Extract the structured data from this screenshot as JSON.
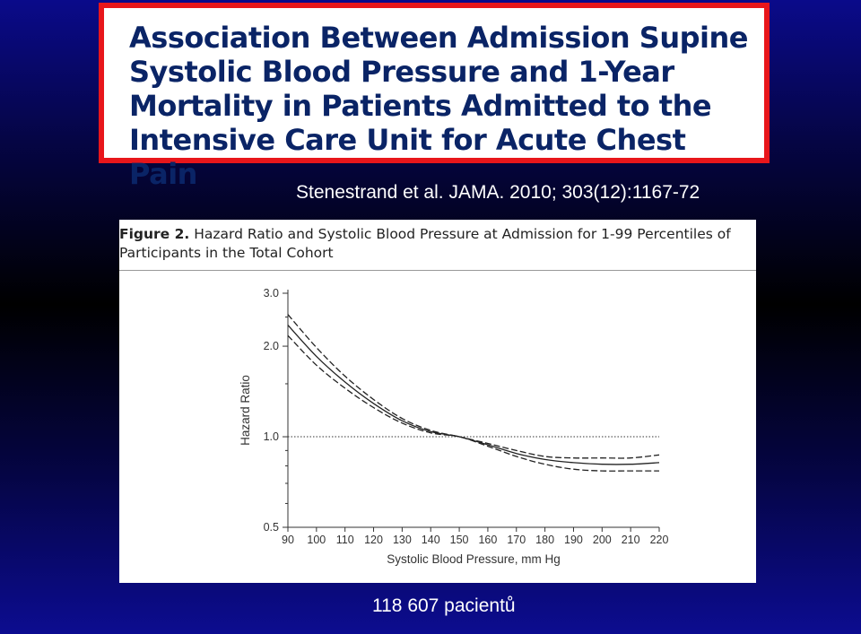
{
  "slide": {
    "title": "Association Between Admission Supine Systolic Blood Pressure and 1-Year Mortality in Patients Admitted to the Intensive Care Unit for Acute Chest Pain",
    "citation": "Stenestrand et al. JAMA. 2010; 303(12):1167-72",
    "footnote": "118 607 pacientů",
    "colors": {
      "title_border": "#e8161b",
      "title_text": "#0a2466",
      "background": "#000000"
    }
  },
  "figure": {
    "label": "Figure 2.",
    "caption": "Hazard Ratio and Systolic Blood Pressure at Admission for 1-99 Percentiles of Participants in the Total Cohort"
  },
  "chart_data": {
    "type": "line",
    "title": "",
    "xlabel": "Systolic Blood Pressure, mm Hg",
    "ylabel": "Hazard Ratio",
    "x_ticks": [
      90,
      100,
      110,
      120,
      130,
      140,
      150,
      160,
      170,
      180,
      190,
      200,
      210,
      220
    ],
    "y_tick_labels": [
      "3.0",
      "2.0",
      "1.0",
      "0.5"
    ],
    "y_scale": "log",
    "xlim": [
      90,
      220
    ],
    "ylim": [
      0.5,
      3.0
    ],
    "reference_line": {
      "y": 1.0,
      "style": "dotted"
    },
    "grid": false,
    "legend": "none",
    "x": [
      90,
      100,
      110,
      120,
      130,
      140,
      150,
      160,
      170,
      180,
      190,
      200,
      210,
      220
    ],
    "series": [
      {
        "style": "solid",
        "values": [
          2.35,
          1.85,
          1.52,
          1.29,
          1.13,
          1.04,
          1.0,
          0.94,
          0.88,
          0.84,
          0.82,
          0.81,
          0.81,
          0.82
        ]
      },
      {
        "style": "dashed",
        "values": [
          2.55,
          1.98,
          1.59,
          1.33,
          1.15,
          1.05,
          1.0,
          0.95,
          0.9,
          0.86,
          0.85,
          0.85,
          0.85,
          0.87
        ]
      },
      {
        "style": "dashed",
        "values": [
          2.17,
          1.73,
          1.45,
          1.25,
          1.11,
          1.03,
          1.0,
          0.93,
          0.86,
          0.81,
          0.78,
          0.77,
          0.77,
          0.77
        ]
      }
    ]
  }
}
